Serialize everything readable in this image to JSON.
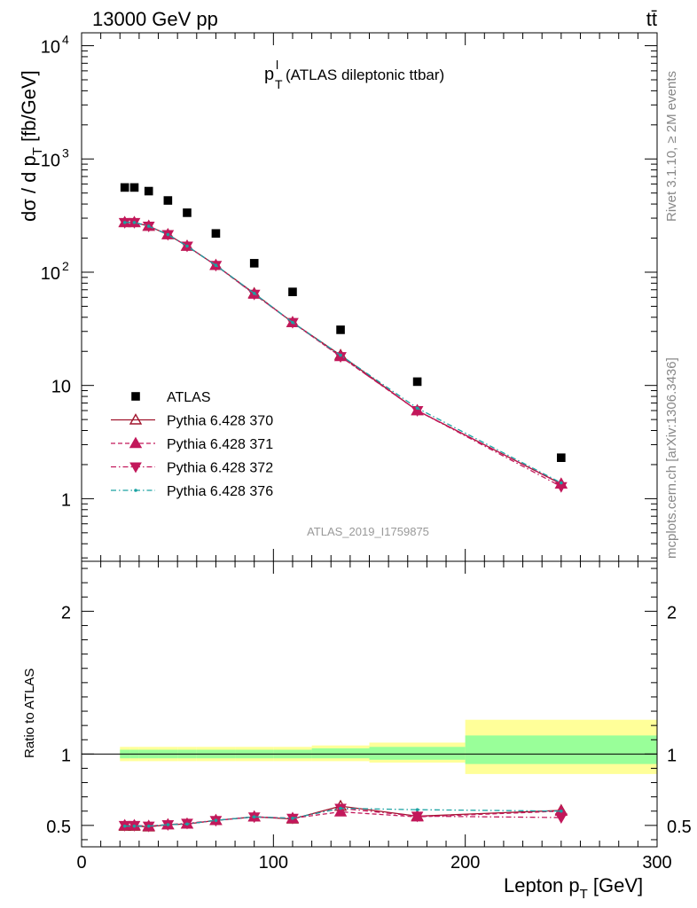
{
  "header": {
    "energy": "13000 GeV pp",
    "process": "tt̄"
  },
  "side_labels": {
    "rivet": "Rivet 3.1.10, ≥ 2M events",
    "site": "mcplots.cern.ch [arXiv:1306.3436]"
  },
  "watermark": "ATLAS_2019_I1759875",
  "chart_data": [
    {
      "type": "scatter",
      "title_main": "p",
      "title_sup": "l",
      "title_sub": "T",
      "title_rest": " (ATLAS dileptonic ttbar)",
      "ylabel_main": "dσ / d p",
      "ylabel_sub": "T",
      "ylabel_unit": " [fb/GeV]",
      "yscale": "log",
      "xlim": [
        0,
        300
      ],
      "ylim": [
        0.28,
        13000
      ],
      "ytick_labels": [
        {
          "value": 1,
          "label": "1"
        },
        {
          "value": 10,
          "label": "10"
        },
        {
          "value": 100,
          "label": "10",
          "exp": "2"
        },
        {
          "value": 1000,
          "label": "10",
          "exp": "3"
        },
        {
          "value": 10000,
          "label": "10",
          "exp": "4"
        }
      ],
      "legend_position": "lower-left",
      "series": [
        {
          "name": "ATLAS",
          "marker": "square",
          "color": "#000000",
          "x": [
            22.5,
            27.5,
            35,
            45,
            55,
            70,
            90,
            110,
            135,
            175,
            250
          ],
          "y": [
            560,
            560,
            520,
            430,
            335,
            220,
            120,
            67,
            31,
            10.8,
            2.3
          ]
        },
        {
          "name": "Pythia 6.428 370",
          "marker": "triangle-up-open",
          "line": "solid",
          "color": "#a0152d",
          "x": [
            22.5,
            27.5,
            35,
            45,
            55,
            70,
            90,
            110,
            135,
            175,
            250
          ],
          "y": [
            275,
            275,
            255,
            215,
            170,
            115,
            65,
            36,
            18.5,
            6.0,
            1.35
          ]
        },
        {
          "name": "Pythia 6.428 371",
          "marker": "triangle-up",
          "line": "dashed",
          "color": "#c2185b",
          "x": [
            22.5,
            27.5,
            35,
            45,
            55,
            70,
            90,
            110,
            135,
            175,
            250
          ],
          "y": [
            275,
            275,
            255,
            215,
            170,
            115,
            64,
            36,
            18.0,
            6.0,
            1.35
          ]
        },
        {
          "name": "Pythia 6.428 372",
          "marker": "triangle-down",
          "line": "dashdot",
          "color": "#c2185b",
          "x": [
            22.5,
            27.5,
            35,
            45,
            55,
            70,
            90,
            110,
            135,
            175,
            250
          ],
          "y": [
            275,
            275,
            255,
            215,
            170,
            115,
            64,
            36,
            18.0,
            6.0,
            1.28
          ]
        },
        {
          "name": "Pythia 6.428 376",
          "marker": "dot",
          "line": "dashdot",
          "color": "#1aa2a2",
          "x": [
            22.5,
            27.5,
            35,
            45,
            55,
            70,
            90,
            110,
            135,
            175,
            250
          ],
          "y": [
            275,
            275,
            255,
            215,
            170,
            115,
            65,
            36,
            18.5,
            6.3,
            1.38
          ]
        }
      ]
    },
    {
      "type": "scatter",
      "ylabel": "Ratio to ATLAS",
      "xlabel_main": "Lepton p",
      "xlabel_sub": "T",
      "xlabel_unit": " [GeV]",
      "xlim": [
        0,
        300
      ],
      "ylim": [
        0.35,
        2.35
      ],
      "x_ticks": [
        0,
        100,
        200,
        300
      ],
      "y_ticks": [
        0.5,
        1,
        2
      ],
      "bands": [
        {
          "x0": 20,
          "x1": 25,
          "green": [
            0.97,
            1.03
          ],
          "yellow": [
            0.95,
            1.05
          ]
        },
        {
          "x0": 25,
          "x1": 30,
          "green": [
            0.97,
            1.03
          ],
          "yellow": [
            0.95,
            1.05
          ]
        },
        {
          "x0": 30,
          "x1": 40,
          "green": [
            0.97,
            1.03
          ],
          "yellow": [
            0.95,
            1.05
          ]
        },
        {
          "x0": 40,
          "x1": 50,
          "green": [
            0.97,
            1.03
          ],
          "yellow": [
            0.95,
            1.05
          ]
        },
        {
          "x0": 50,
          "x1": 60,
          "green": [
            0.97,
            1.03
          ],
          "yellow": [
            0.95,
            1.05
          ]
        },
        {
          "x0": 60,
          "x1": 80,
          "green": [
            0.97,
            1.03
          ],
          "yellow": [
            0.95,
            1.05
          ]
        },
        {
          "x0": 80,
          "x1": 100,
          "green": [
            0.97,
            1.03
          ],
          "yellow": [
            0.95,
            1.05
          ]
        },
        {
          "x0": 100,
          "x1": 120,
          "green": [
            0.97,
            1.03
          ],
          "yellow": [
            0.95,
            1.05
          ]
        },
        {
          "x0": 120,
          "x1": 150,
          "green": [
            0.97,
            1.04
          ],
          "yellow": [
            0.95,
            1.06
          ]
        },
        {
          "x0": 150,
          "x1": 200,
          "green": [
            0.96,
            1.05
          ],
          "yellow": [
            0.94,
            1.08
          ]
        },
        {
          "x0": 200,
          "x1": 300,
          "green": [
            0.93,
            1.13
          ],
          "yellow": [
            0.86,
            1.24
          ]
        }
      ],
      "series": [
        {
          "name": "Pythia 6.428 370",
          "marker": "triangle-up-open",
          "line": "solid",
          "color": "#a0152d",
          "x": [
            22.5,
            27.5,
            35,
            45,
            55,
            70,
            90,
            110,
            135,
            175,
            250
          ],
          "y": [
            0.495,
            0.495,
            0.49,
            0.505,
            0.51,
            0.535,
            0.56,
            0.545,
            0.635,
            0.565,
            0.605
          ]
        },
        {
          "name": "Pythia 6.428 371",
          "marker": "triangle-up",
          "line": "dashed",
          "color": "#c2185b",
          "x": [
            22.5,
            27.5,
            35,
            45,
            55,
            70,
            90,
            110,
            135,
            175,
            250
          ],
          "y": [
            0.5,
            0.5,
            0.495,
            0.505,
            0.51,
            0.535,
            0.56,
            0.55,
            0.595,
            0.56,
            0.6
          ]
        },
        {
          "name": "Pythia 6.428 372",
          "marker": "triangle-down",
          "line": "dashdot",
          "color": "#c2185b",
          "x": [
            22.5,
            27.5,
            35,
            45,
            55,
            70,
            90,
            110,
            135,
            175,
            250
          ],
          "y": [
            0.5,
            0.5,
            0.495,
            0.505,
            0.515,
            0.535,
            0.56,
            0.55,
            0.62,
            0.565,
            0.555
          ]
        },
        {
          "name": "Pythia 6.428 376",
          "marker": "dot",
          "line": "dashdot",
          "color": "#1aa2a2",
          "x": [
            22.5,
            27.5,
            35,
            45,
            55,
            70,
            90,
            110,
            135,
            175,
            250
          ],
          "y": [
            0.495,
            0.495,
            0.495,
            0.505,
            0.51,
            0.535,
            0.56,
            0.55,
            0.62,
            0.61,
            0.6
          ]
        }
      ]
    }
  ]
}
